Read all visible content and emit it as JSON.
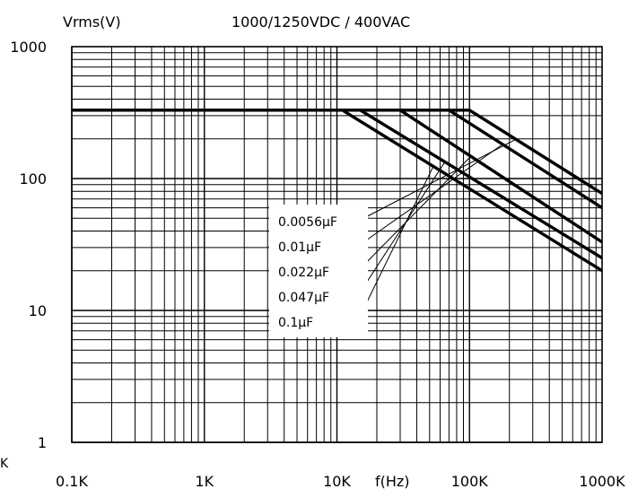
{
  "chart_data": {
    "type": "line",
    "title": "1000/1250VDC / 400VAC",
    "ylabel": "Vrms(V)",
    "xlabel": "f(Hz)",
    "x_scale": "log",
    "y_scale": "log",
    "xlim": [
      100,
      1000000
    ],
    "ylim": [
      1,
      1000
    ],
    "grid": true,
    "x_ticks": [
      {
        "value": 100,
        "label": "0.1K"
      },
      {
        "value": 1000,
        "label": "1K"
      },
      {
        "value": 10000,
        "label": "10K"
      },
      {
        "value": 100000,
        "label": "100K"
      },
      {
        "value": 1000000,
        "label": "1000K"
      }
    ],
    "y_ticks": [
      {
        "value": 1,
        "label": "1"
      },
      {
        "value": 10,
        "label": "10"
      },
      {
        "value": 100,
        "label": "100"
      },
      {
        "value": 1000,
        "label": "1000"
      }
    ],
    "series": [
      {
        "name": "0.0056μF",
        "x": [
          100,
          100000,
          1000000
        ],
        "y": [
          330,
          330,
          77
        ]
      },
      {
        "name": "0.01μF",
        "x": [
          100,
          70000,
          1000000
        ],
        "y": [
          330,
          330,
          60
        ]
      },
      {
        "name": "0.022μF",
        "x": [
          100,
          30000,
          1000000
        ],
        "y": [
          330,
          330,
          33
        ]
      },
      {
        "name": "0.047μF",
        "x": [
          100,
          15000,
          1000000
        ],
        "y": [
          330,
          330,
          25
        ]
      },
      {
        "name": "0.1μF",
        "x": [
          100,
          11000,
          1000000
        ],
        "y": [
          330,
          330,
          20
        ]
      }
    ],
    "stray_label": "K"
  }
}
